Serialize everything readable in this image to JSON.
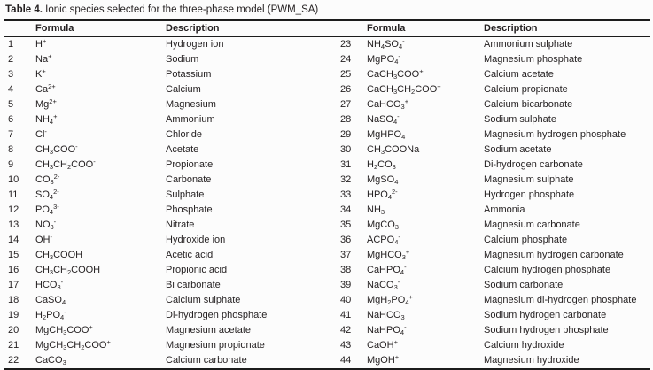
{
  "title": {
    "label": "Table 4.",
    "text": " Ionic species selected for the three-phase model (PWM_SA)"
  },
  "columns": {
    "formula": "Formula",
    "description": "Description"
  },
  "colors": {
    "text": "#231f20",
    "rule": "#1c1c1c",
    "background": "#fcfcfc"
  },
  "rows": [
    {
      "num": "1",
      "formula": "H^+^",
      "description": "Hydrogen ion"
    },
    {
      "num": "2",
      "formula": "Na^+^",
      "description": "Sodium"
    },
    {
      "num": "3",
      "formula": "K^+^",
      "description": "Potassium"
    },
    {
      "num": "4",
      "formula": "Ca^2+^",
      "description": "Calcium"
    },
    {
      "num": "5",
      "formula": "Mg^2+^",
      "description": "Magnesium"
    },
    {
      "num": "6",
      "formula": "NH~4~^+^",
      "description": "Ammonium"
    },
    {
      "num": "7",
      "formula": "Cl^-^",
      "description": "Chloride"
    },
    {
      "num": "8",
      "formula": "CH~3~COO^-^",
      "description": "Acetate"
    },
    {
      "num": "9",
      "formula": "CH~3~CH~2~COO^-^",
      "description": "Propionate"
    },
    {
      "num": "10",
      "formula": "CO~3~^2-^",
      "description": "Carbonate"
    },
    {
      "num": "11",
      "formula": "SO~4~^2-^",
      "description": "Sulphate"
    },
    {
      "num": "12",
      "formula": "PO~4~^3-^",
      "description": "Phosphate"
    },
    {
      "num": "13",
      "formula": "NO~3~^-^",
      "description": "Nitrate"
    },
    {
      "num": "14",
      "formula": "OH^-^",
      "description": "Hydroxide ion"
    },
    {
      "num": "15",
      "formula": "CH~3~COOH",
      "description": "Acetic acid"
    },
    {
      "num": "16",
      "formula": "CH~3~CH~2~COOH",
      "description": "Propionic acid"
    },
    {
      "num": "17",
      "formula": "HCO~3~^-^",
      "description": "Bi carbonate"
    },
    {
      "num": "18",
      "formula": "CaSO~4~",
      "description": "Calcium sulphate"
    },
    {
      "num": "19",
      "formula": "H~2~PO~4~^-^",
      "description": "Di-hydrogen phosphate"
    },
    {
      "num": "20",
      "formula": "MgCH~3~COO^+^",
      "description": "Magnesium acetate"
    },
    {
      "num": "21",
      "formula": "MgCH~3~CH~2~COO^+^",
      "description": "Magnesium propionate"
    },
    {
      "num": "22",
      "formula": "CaCO~3~",
      "description": "Calcium carbonate"
    },
    {
      "num": "23",
      "formula": "NH~4~SO~4~^-^",
      "description": "Ammonium sulphate"
    },
    {
      "num": "24",
      "formula": "MgPO~4~^-^",
      "description": "Magnesium phosphate"
    },
    {
      "num": "25",
      "formula": "CaCH~3~COO^+^",
      "description": "Calcium acetate"
    },
    {
      "num": "26",
      "formula": "CaCH~3~CH~2~COO^+^",
      "description": "Calcium propionate"
    },
    {
      "num": "27",
      "formula": "CaHCO~3~^+^",
      "description": "Calcium bicarbonate"
    },
    {
      "num": "28",
      "formula": "NaSO~4~^-^",
      "description": "Sodium sulphate"
    },
    {
      "num": "29",
      "formula": "MgHPO~4~",
      "description": "Magnesium hydrogen phosphate"
    },
    {
      "num": "30",
      "formula": "CH~3~COONa",
      "description": "Sodium acetate"
    },
    {
      "num": "31",
      "formula": "H~2~CO~3~",
      "description": "Di-hydrogen carbonate"
    },
    {
      "num": "32",
      "formula": "MgSO~4~",
      "description": "Magnesium sulphate"
    },
    {
      "num": "33",
      "formula": "HPO~4~^2-^",
      "description": "Hydrogen phosphate"
    },
    {
      "num": "34",
      "formula": "NH~3~",
      "description": "Ammonia"
    },
    {
      "num": "35",
      "formula": "MgCO~3~",
      "description": "Magnesium carbonate"
    },
    {
      "num": "36",
      "formula": "ACPO~4~^-^",
      "description": "Calcium phosphate"
    },
    {
      "num": "37",
      "formula": "MgHCO~3~^+^",
      "description": "Magnesium hydrogen carbonate"
    },
    {
      "num": "38",
      "formula": "CaHPO~4~^-^",
      "description": "Calcium hydrogen phosphate"
    },
    {
      "num": "39",
      "formula": "NaCO~3~^-^",
      "description": "Sodium carbonate"
    },
    {
      "num": "40",
      "formula": "MgH~2~PO~4~^+^",
      "description": "Magnesium di-hydrogen phosphate"
    },
    {
      "num": "41",
      "formula": "NaHCO~3~",
      "description": "Sodium hydrogen carbonate"
    },
    {
      "num": "42",
      "formula": "NaHPO~4~^-^",
      "description": "Sodium hydrogen phosphate"
    },
    {
      "num": "43",
      "formula": "CaOH^+^",
      "description": "Calcium hydroxide"
    },
    {
      "num": "44",
      "formula": "MgOH^+^",
      "description": "Magnesium hydroxide"
    }
  ]
}
